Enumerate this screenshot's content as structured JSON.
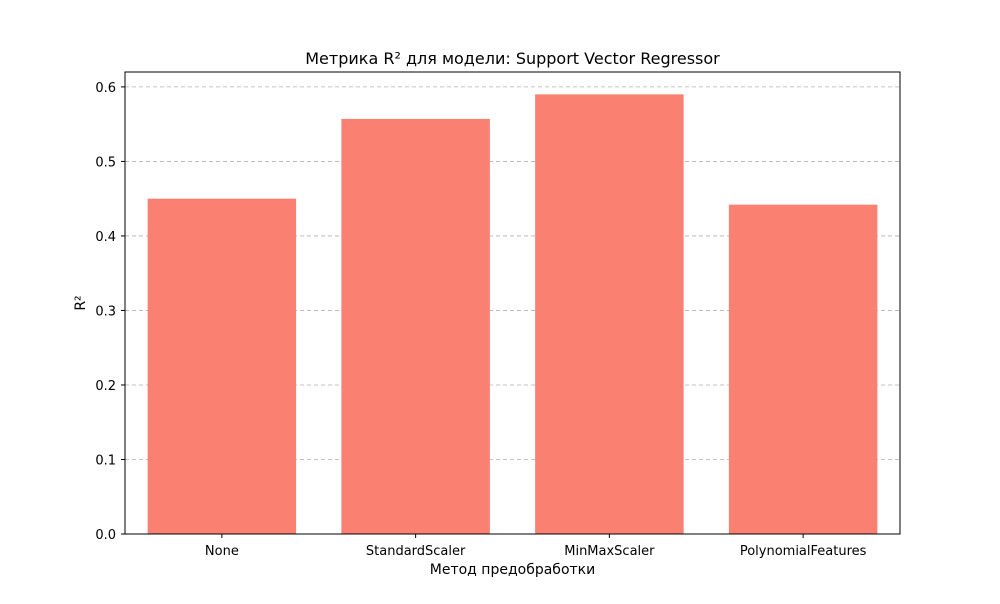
{
  "chart_data": {
    "type": "bar",
    "title": "Метрика R² для модели: Support Vector Regressor",
    "xlabel": "Метод предобработки",
    "ylabel": "R²",
    "categories": [
      "None",
      "StandardScaler",
      "MinMaxScaler",
      "PolynomialFeatures"
    ],
    "values": [
      0.45,
      0.557,
      0.59,
      0.442
    ],
    "ylim": [
      0,
      0.62
    ],
    "yticks": [
      0.0,
      0.1,
      0.2,
      0.3,
      0.4,
      0.5,
      0.6
    ],
    "ytick_labels": [
      "0.0",
      "0.1",
      "0.2",
      "0.3",
      "0.4",
      "0.5",
      "0.6"
    ],
    "grid": "y-dashed",
    "bar_color": "#fa8072",
    "legend": null
  }
}
